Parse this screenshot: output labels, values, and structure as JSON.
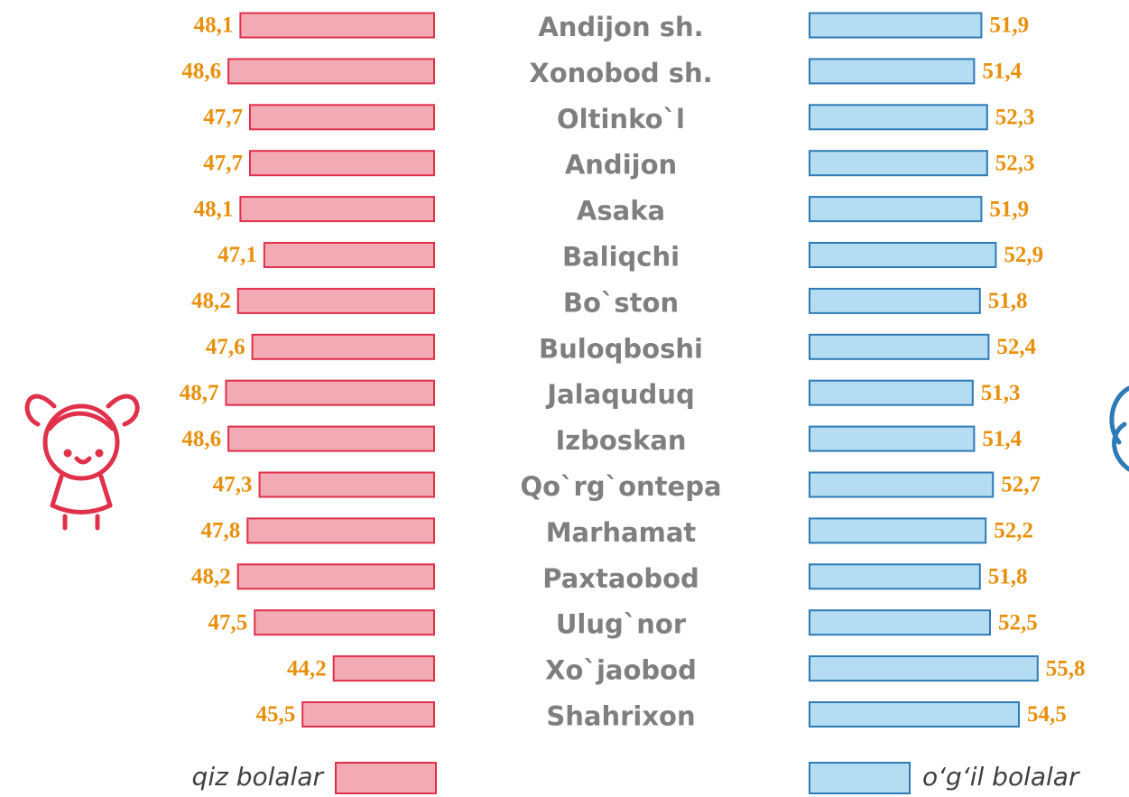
{
  "chart_data": {
    "type": "butterfly",
    "categories": [
      "Andijon sh.",
      "Xonobod sh.",
      "Oltinko`l",
      "Andijon",
      "Asaka",
      "Baliqchi",
      "Bo`ston",
      "Buloqboshi",
      "Jalaquduq",
      "Izboskan",
      "Qo`rg`ontepa",
      "Marhamat",
      "Paxtaobod",
      "Ulug`nor",
      "Xo`jaobod",
      "Shahrixon"
    ],
    "series": [
      {
        "name": "qiz bolalar",
        "color": "#f2aab4",
        "values": [
          48.1,
          48.6,
          47.7,
          47.7,
          48.1,
          47.1,
          48.2,
          47.6,
          48.7,
          48.6,
          47.3,
          47.8,
          48.2,
          47.5,
          44.2,
          45.5
        ],
        "value_labels": [
          "48,1",
          "48,6",
          "47,7",
          "47,7",
          "48,1",
          "47,1",
          "48,2",
          "47,6",
          "48,7",
          "48,6",
          "47,3",
          "47,8",
          "48,2",
          "47,5",
          "44,2",
          "45,5"
        ],
        "xlim": [
          40,
          50
        ]
      },
      {
        "name": "o‘g‘il bolalar",
        "color": "#b4dcf2",
        "values": [
          51.9,
          51.4,
          52.3,
          52.3,
          51.9,
          52.9,
          51.8,
          52.4,
          51.3,
          51.4,
          52.7,
          52.2,
          51.8,
          52.5,
          55.8,
          54.5
        ],
        "value_labels": [
          "51,9",
          "51,4",
          "52,3",
          "52,3",
          "51,9",
          "52,9",
          "51,8",
          "52,4",
          "51,3",
          "51,4",
          "52,7",
          "52,2",
          "51,8",
          "52,5",
          "55,8",
          "54,5"
        ],
        "xlim": [
          40,
          60
        ]
      }
    ]
  }
}
